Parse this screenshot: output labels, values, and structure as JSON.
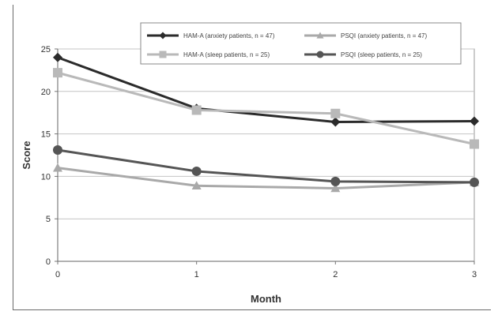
{
  "chart_data": {
    "type": "line",
    "xlabel": "Month",
    "ylabel": "Score",
    "x": [
      0,
      1,
      2,
      3
    ],
    "xlim": [
      0,
      3
    ],
    "ylim": [
      0,
      25
    ],
    "yticks": [
      0,
      5,
      10,
      15,
      20,
      25
    ],
    "grid": "horizontal",
    "legend_position": "top",
    "series": [
      {
        "name": "HAM-A (anxiety patients, n = 47)",
        "values": [
          24.0,
          18.0,
          16.4,
          16.5
        ],
        "color": "#2b2b2b",
        "marker": "diamond"
      },
      {
        "name": "PSQI (anxiety patients, n = 47)",
        "values": [
          11.0,
          8.9,
          8.6,
          9.3
        ],
        "color": "#a9a9a9",
        "marker": "triangle"
      },
      {
        "name": "HAM-A (sleep patients, n = 25)",
        "values": [
          22.2,
          17.8,
          17.4,
          13.8
        ],
        "color": "#b9b9b9",
        "marker": "square"
      },
      {
        "name": "PSQI (sleep patients, n = 25)",
        "values": [
          13.1,
          10.6,
          9.4,
          9.3
        ],
        "color": "#555555",
        "marker": "circle"
      }
    ]
  }
}
